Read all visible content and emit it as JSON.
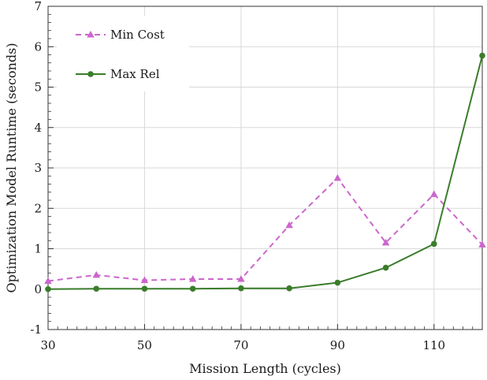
{
  "chart_data": {
    "type": "line",
    "title": "",
    "xlabel": "Mission Length (cycles)",
    "ylabel": "Optimization Model Runtime (seconds)",
    "xlim": [
      30,
      120
    ],
    "ylim": [
      -1,
      7
    ],
    "xticks": [
      30,
      50,
      70,
      90,
      110
    ],
    "yticks": [
      -1,
      0,
      1,
      2,
      3,
      4,
      5,
      6,
      7
    ],
    "grid": true,
    "legend_position": "top-left",
    "x": [
      30,
      40,
      50,
      60,
      70,
      80,
      90,
      100,
      110,
      120
    ],
    "series": [
      {
        "name": "Min Cost",
        "color": "#cc66cc",
        "line_style": "dashed",
        "marker": "triangle",
        "values": [
          0.2,
          0.35,
          0.22,
          0.25,
          0.25,
          1.58,
          2.75,
          1.15,
          2.35,
          1.1
        ]
      },
      {
        "name": "Max Rel",
        "color": "#3a7d2a",
        "line_style": "solid",
        "marker": "circle",
        "values": [
          0.0,
          0.01,
          0.01,
          0.01,
          0.02,
          0.02,
          0.16,
          0.53,
          1.12,
          5.78
        ]
      }
    ]
  }
}
